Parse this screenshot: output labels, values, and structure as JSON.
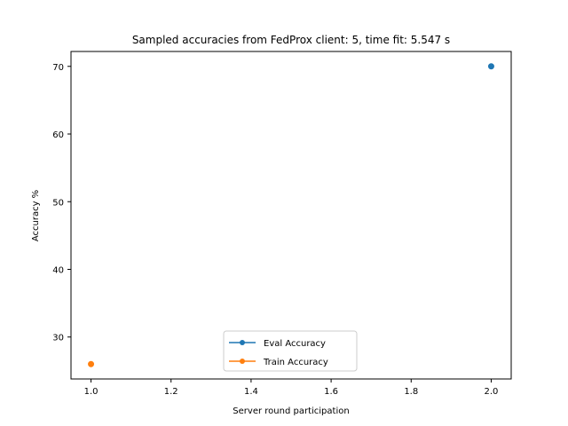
{
  "chart_data": {
    "type": "line",
    "title": "Sampled accuracies from FedProx client: 5, time fit: 5.547 s",
    "xlabel": "Server round participation",
    "ylabel": "Accuracy %",
    "xlim": [
      0.95,
      2.05
    ],
    "ylim": [
      23.8,
      72.2
    ],
    "xticks": [
      1.0,
      1.2,
      1.4,
      1.6,
      1.8,
      2.0
    ],
    "xtick_labels": [
      "1.0",
      "1.2",
      "1.4",
      "1.6",
      "1.8",
      "2.0"
    ],
    "yticks": [
      30,
      40,
      50,
      60,
      70
    ],
    "ytick_labels": [
      "30",
      "40",
      "50",
      "60",
      "70"
    ],
    "grid": false,
    "legend_position": "lower center",
    "series": [
      {
        "name": "Eval Accuracy",
        "color": "#1f77b4",
        "marker": "circle",
        "points": [
          {
            "x": 2.0,
            "y": 70.0
          }
        ]
      },
      {
        "name": "Train Accuracy",
        "color": "#ff7f0e",
        "marker": "circle",
        "points": [
          {
            "x": 1.0,
            "y": 26.0
          }
        ]
      }
    ]
  }
}
